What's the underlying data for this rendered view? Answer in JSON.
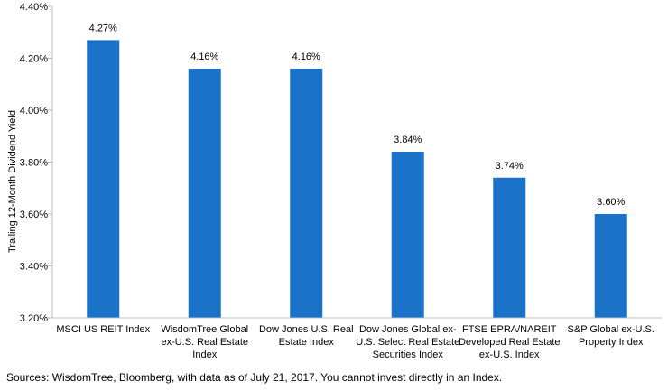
{
  "chart_data": {
    "type": "bar",
    "categories": [
      [
        "MSCI US REIT Index"
      ],
      [
        "WisdomTree Global",
        "ex-U.S. Real Estate",
        "Index"
      ],
      [
        "Dow Jones U.S. Real",
        "Estate Index"
      ],
      [
        "Dow Jones Global ex-",
        "U.S. Select Real Estate",
        "Securities Index"
      ],
      [
        "FTSE EPRA/NAREIT",
        "Developed Real Estate",
        "ex-U.S. Index"
      ],
      [
        "S&P Global ex-U.S.",
        "Property Index"
      ]
    ],
    "values": [
      4.27,
      4.16,
      4.16,
      3.84,
      3.74,
      3.6
    ],
    "data_labels": [
      "4.27%",
      "4.16%",
      "4.16%",
      "3.84%",
      "3.74%",
      "3.60%"
    ],
    "ylabel": "Trailing 12-Month Dividend Yield",
    "ylim": [
      3.2,
      4.4
    ],
    "yticks": [
      3.2,
      3.4,
      3.6,
      3.8,
      4.0,
      4.2,
      4.4
    ],
    "ytick_labels": [
      "3.20%",
      "3.40%",
      "3.60%",
      "3.80%",
      "4.00%",
      "4.20%",
      "4.40%"
    ],
    "grid": false,
    "bar_color": "#1a73c9"
  },
  "source_note": "Sources: WisdomTree, Bloomberg, with data as of July 21, 2017. You cannot invest directly in an Index."
}
